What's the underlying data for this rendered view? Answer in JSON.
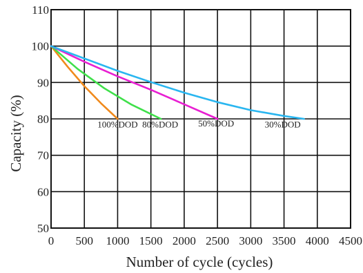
{
  "chart_data": {
    "type": "line",
    "title": "",
    "xlabel": "Number of cycle (cycles)",
    "ylabel": "Capacity (%)",
    "xlim": [
      0,
      4500
    ],
    "ylim": [
      50,
      110
    ],
    "xticks": [
      0,
      500,
      1000,
      1500,
      2000,
      2500,
      3000,
      3500,
      4000,
      4500
    ],
    "xtick_labels": [
      "0",
      "500",
      "1000",
      "1500",
      "2000",
      "2500",
      "3000",
      "3500",
      "4000",
      "4500"
    ],
    "yticks": [
      50,
      60,
      70,
      80,
      90,
      100,
      110
    ],
    "ytick_labels": [
      "50",
      "60",
      "70",
      "80",
      "90",
      "100",
      "110"
    ],
    "grid": true,
    "legend": "none",
    "series": [
      {
        "label": "100%DOD",
        "color": "#f08a1c",
        "x": [
          0,
          250,
          500,
          750,
          1000
        ],
        "y": [
          100,
          94.3,
          89,
          84.3,
          80
        ]
      },
      {
        "label": "80%DOD",
        "color": "#3fe04a",
        "x": [
          0,
          400,
          800,
          1200,
          1650
        ],
        "y": [
          100,
          93.7,
          88.4,
          84,
          80
        ]
      },
      {
        "label": "50%DOD",
        "color": "#e81fd2",
        "x": [
          0,
          500,
          1000,
          1500,
          2000,
          2500
        ],
        "y": [
          100,
          95.7,
          91.7,
          88,
          84,
          80
        ]
      },
      {
        "label": "30%DOD",
        "color": "#29b6f0",
        "x": [
          0,
          500,
          1000,
          1500,
          2000,
          2500,
          3000,
          3500,
          3800
        ],
        "y": [
          100,
          96.6,
          93.2,
          90.1,
          87.2,
          84.6,
          82.4,
          80.8,
          80
        ]
      }
    ],
    "annotations": [
      {
        "text": "100%DOD",
        "x": 1000,
        "y": 77.6
      },
      {
        "text": "80%DOD",
        "x": 1640,
        "y": 77.6
      },
      {
        "text": "50%DOD",
        "x": 2480,
        "y": 77.9
      },
      {
        "text": "30%DOD",
        "x": 3480,
        "y": 77.6
      }
    ]
  }
}
